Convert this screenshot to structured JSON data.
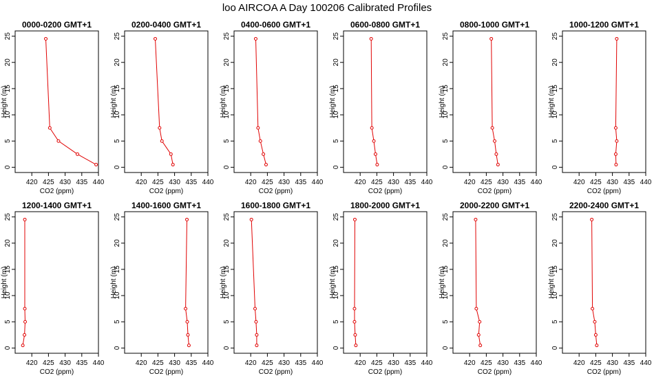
{
  "title": "loo AIRCOA A  Day 100206  Calibrated Profiles",
  "colors": {
    "series": "#e00000",
    "axes": "#000000",
    "background": "#ffffff"
  },
  "chart_data": {
    "type": "line",
    "layout": "2 rows x 6 panels",
    "xlabel": "CO2 (ppm)",
    "ylabel": "Height (m)",
    "xlim": [
      415,
      440
    ],
    "ylim": [
      0,
      25
    ],
    "xticks": [
      420,
      425,
      430,
      435,
      440
    ],
    "yticks": [
      0,
      5,
      10,
      15,
      20,
      25
    ],
    "grid": false,
    "panels": [
      {
        "title": "0000-0200 GMT+1",
        "points": [
          {
            "x": 439.3,
            "y": 0.5
          },
          {
            "x": 433.7,
            "y": 2.5
          },
          {
            "x": 428.0,
            "y": 5.0
          },
          {
            "x": 425.4,
            "y": 7.5
          },
          {
            "x": 424.2,
            "y": 24.5
          }
        ]
      },
      {
        "title": "0200-0400 GMT+1",
        "points": [
          {
            "x": 429.5,
            "y": 0.5
          },
          {
            "x": 428.9,
            "y": 2.5
          },
          {
            "x": 426.2,
            "y": 5.0
          },
          {
            "x": 425.5,
            "y": 7.5
          },
          {
            "x": 424.2,
            "y": 24.5
          }
        ]
      },
      {
        "title": "0400-0600 GMT+1",
        "points": [
          {
            "x": 424.6,
            "y": 0.5
          },
          {
            "x": 423.8,
            "y": 2.5
          },
          {
            "x": 422.9,
            "y": 5.0
          },
          {
            "x": 422.2,
            "y": 7.5
          },
          {
            "x": 421.5,
            "y": 24.5
          }
        ]
      },
      {
        "title": "0600-0800 GMT+1",
        "points": [
          {
            "x": 425.1,
            "y": 0.5
          },
          {
            "x": 424.6,
            "y": 2.5
          },
          {
            "x": 424.1,
            "y": 5.0
          },
          {
            "x": 423.5,
            "y": 7.5
          },
          {
            "x": 423.3,
            "y": 24.5
          }
        ]
      },
      {
        "title": "0800-1000 GMT+1",
        "points": [
          {
            "x": 428.5,
            "y": 0.5
          },
          {
            "x": 428.0,
            "y": 2.5
          },
          {
            "x": 427.5,
            "y": 5.0
          },
          {
            "x": 426.8,
            "y": 7.5
          },
          {
            "x": 426.5,
            "y": 24.5
          }
        ]
      },
      {
        "title": "1000-1200 GMT+1",
        "points": [
          {
            "x": 431.1,
            "y": 0.5
          },
          {
            "x": 431.0,
            "y": 2.5
          },
          {
            "x": 431.3,
            "y": 5.0
          },
          {
            "x": 431.0,
            "y": 7.5
          },
          {
            "x": 431.3,
            "y": 24.5
          }
        ]
      },
      {
        "title": "1200-1400 GMT+1",
        "points": [
          {
            "x": 417.3,
            "y": 0.5
          },
          {
            "x": 417.8,
            "y": 2.5
          },
          {
            "x": 418.0,
            "y": 5.0
          },
          {
            "x": 417.9,
            "y": 7.5
          },
          {
            "x": 417.9,
            "y": 24.5
          }
        ]
      },
      {
        "title": "1400-1600 GMT+1",
        "points": [
          {
            "x": 434.3,
            "y": 0.5
          },
          {
            "x": 434.0,
            "y": 2.5
          },
          {
            "x": 433.8,
            "y": 5.0
          },
          {
            "x": 433.3,
            "y": 7.5
          },
          {
            "x": 433.7,
            "y": 24.5
          }
        ]
      },
      {
        "title": "1600-1800 GMT+1",
        "points": [
          {
            "x": 421.8,
            "y": 0.5
          },
          {
            "x": 421.8,
            "y": 2.5
          },
          {
            "x": 421.6,
            "y": 5.0
          },
          {
            "x": 421.3,
            "y": 7.5
          },
          {
            "x": 420.2,
            "y": 24.5
          }
        ]
      },
      {
        "title": "1800-2000 GMT+1",
        "points": [
          {
            "x": 418.7,
            "y": 0.5
          },
          {
            "x": 418.5,
            "y": 2.5
          },
          {
            "x": 418.3,
            "y": 5.0
          },
          {
            "x": 418.3,
            "y": 7.5
          },
          {
            "x": 418.4,
            "y": 24.5
          }
        ]
      },
      {
        "title": "2000-2200 GMT+1",
        "points": [
          {
            "x": 423.2,
            "y": 0.5
          },
          {
            "x": 422.7,
            "y": 2.5
          },
          {
            "x": 423.0,
            "y": 5.0
          },
          {
            "x": 422.0,
            "y": 7.5
          },
          {
            "x": 421.8,
            "y": 24.5
          }
        ]
      },
      {
        "title": "2200-2400 GMT+1",
        "points": [
          {
            "x": 425.3,
            "y": 0.5
          },
          {
            "x": 425.0,
            "y": 2.5
          },
          {
            "x": 424.7,
            "y": 5.0
          },
          {
            "x": 424.0,
            "y": 7.5
          },
          {
            "x": 423.8,
            "y": 24.5
          }
        ]
      }
    ]
  }
}
